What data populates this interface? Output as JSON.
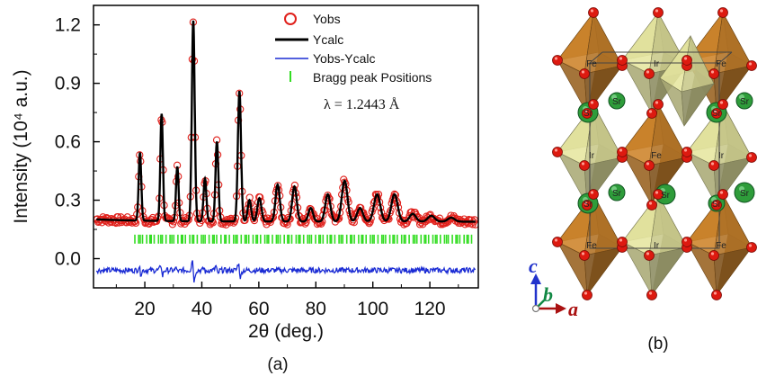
{
  "chart_data": {
    "type": "line",
    "series": [
      {
        "name": "Yobs",
        "color": "#e0201b",
        "marker": "open-circle"
      },
      {
        "name": "Ycalc",
        "color": "#000000"
      },
      {
        "name": "Yobs-Ycalc",
        "color": "#1a2bd4"
      },
      {
        "name": "Bragg peak Positions",
        "color": "#33dd22",
        "marker": "tick"
      }
    ],
    "xlabel": "2θ (deg.)",
    "ylabel": "Intensity (10⁴ a.u.)",
    "xlim": [
      2,
      137
    ],
    "ylim": [
      -0.15,
      1.3
    ],
    "xticks": [
      20,
      40,
      60,
      80,
      100,
      120
    ],
    "yticks": [
      0.0,
      0.3,
      0.6,
      0.9,
      1.2
    ],
    "ytick_labels": [
      "0.0",
      "0.3",
      "0.6",
      "0.9",
      "1.2"
    ],
    "annotation": "λ = 1.2443 Å",
    "background": 0.19,
    "peaks": [
      {
        "x": 18.3,
        "y": 0.54,
        "w": 0.45
      },
      {
        "x": 25.9,
        "y": 0.74,
        "w": 0.45
      },
      {
        "x": 31.4,
        "y": 0.47,
        "w": 0.45
      },
      {
        "x": 37.0,
        "y": 1.22,
        "w": 0.5
      },
      {
        "x": 41.1,
        "y": 0.41,
        "w": 0.5
      },
      {
        "x": 45.3,
        "y": 0.6,
        "w": 0.5
      },
      {
        "x": 53.2,
        "y": 0.86,
        "w": 0.55
      },
      {
        "x": 56.7,
        "y": 0.3,
        "w": 0.6
      },
      {
        "x": 60.2,
        "y": 0.31,
        "w": 0.7
      },
      {
        "x": 66.6,
        "y": 0.38,
        "w": 0.75
      },
      {
        "x": 72.5,
        "y": 0.37,
        "w": 0.8
      },
      {
        "x": 78.2,
        "y": 0.26,
        "w": 0.8
      },
      {
        "x": 84.2,
        "y": 0.33,
        "w": 0.9
      },
      {
        "x": 90.1,
        "y": 0.4,
        "w": 1.0
      },
      {
        "x": 95.5,
        "y": 0.26,
        "w": 1.0
      },
      {
        "x": 101.5,
        "y": 0.33,
        "w": 1.1
      },
      {
        "x": 107.6,
        "y": 0.33,
        "w": 1.1
      },
      {
        "x": 114.0,
        "y": 0.23,
        "w": 1.1
      },
      {
        "x": 120.5,
        "y": 0.22,
        "w": 1.2
      },
      {
        "x": 127.5,
        "y": 0.21,
        "w": 1.2
      }
    ],
    "bragg_y": 0.1,
    "difference_offset": -0.06,
    "caption": "(a)"
  },
  "structure": {
    "caption": "(b)",
    "atom_labels": {
      "fe": "Fe",
      "ir": "Ir",
      "sr": "Sr"
    },
    "axes": {
      "c": "c",
      "b": "b",
      "a": "a"
    },
    "colors": {
      "fe_octahedron": "#b27224",
      "ir_octahedron": "#c8c88a",
      "oxygen": "#dd1a10",
      "strontium": "#2e9c3a",
      "axis_c": "#2233cc",
      "axis_b": "#118844",
      "axis_a": "#aa1111"
    }
  }
}
